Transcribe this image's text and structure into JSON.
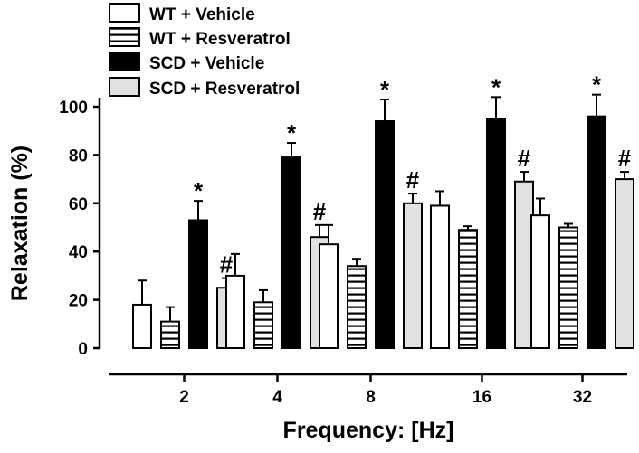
{
  "chart_data": {
    "type": "bar",
    "title": "",
    "xlabel": "Frequency: [Hz]",
    "ylabel": "Relaxation (%)",
    "ylim": [
      0,
      100
    ],
    "yticks": [
      "0",
      "20",
      "40",
      "60",
      "80",
      "100"
    ],
    "categories": [
      "2",
      "4",
      "8",
      "16",
      "32"
    ],
    "legend_position": "top-left",
    "series": [
      {
        "name": "WT + Vehicle",
        "fill": "#ffffff",
        "pattern": "none",
        "values": [
          18,
          30,
          43,
          59,
          55
        ],
        "errors": [
          10,
          9,
          8,
          6,
          7
        ],
        "markers": [
          "",
          "",
          "",
          "",
          ""
        ]
      },
      {
        "name": "WT + Resveratrol",
        "fill": "#ffffff",
        "pattern": "horizontal-stripes",
        "values": [
          11,
          19,
          34,
          49,
          50
        ],
        "errors": [
          6,
          5,
          3,
          1.5,
          1.5
        ],
        "markers": [
          "",
          "",
          "",
          "",
          ""
        ]
      },
      {
        "name": "SCD + Vehicle",
        "fill": "#000000",
        "pattern": "none",
        "values": [
          53,
          79,
          94,
          95,
          96
        ],
        "errors": [
          8,
          6,
          9,
          9,
          9
        ],
        "markers": [
          "*",
          "*",
          "*",
          "*",
          "*"
        ]
      },
      {
        "name": "SCD + Resveratrol",
        "fill": "#e1e1e1",
        "pattern": "none",
        "values": [
          25,
          46,
          60,
          69,
          70
        ],
        "errors": [
          4,
          5,
          4,
          4,
          3
        ],
        "markers": [
          "#",
          "#",
          "#",
          "#",
          "#"
        ]
      }
    ]
  }
}
